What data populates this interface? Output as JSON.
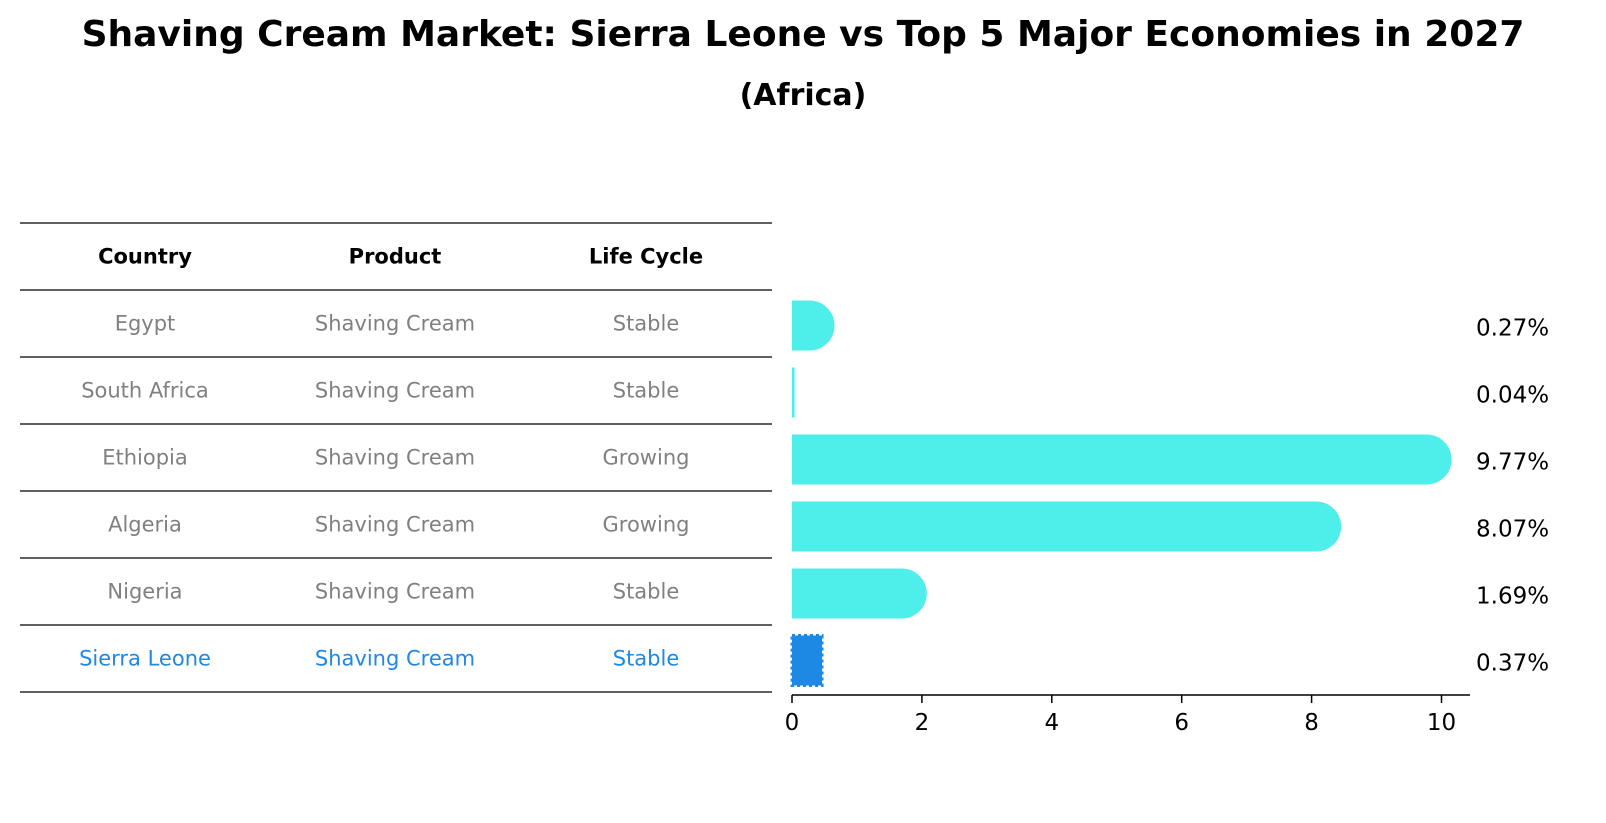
{
  "title": "Shaving Cream Market: Sierra Leone vs Top 5 Major Economies in 2027",
  "subtitle": "(Africa)",
  "table": {
    "headers": [
      "Country",
      "Product",
      "Life Cycle"
    ],
    "rows": [
      [
        "Egypt",
        "Shaving Cream",
        "Stable"
      ],
      [
        "South Africa",
        "Shaving Cream",
        "Stable"
      ],
      [
        "Ethiopia",
        "Shaving Cream",
        "Growing"
      ],
      [
        "Algeria",
        "Shaving Cream",
        "Growing"
      ],
      [
        "Nigeria",
        "Shaving Cream",
        "Stable"
      ],
      [
        "Sierra Leone",
        "Shaving Cream",
        "Stable"
      ]
    ],
    "highlight_row": 5
  },
  "colors": {
    "bar": "#4eeeea",
    "highlight": "#1e88e5",
    "text_muted": "#808080",
    "text_dark": "#000000"
  },
  "chart_data": {
    "type": "bar",
    "orientation": "horizontal",
    "categories": [
      "Egypt",
      "South Africa",
      "Ethiopia",
      "Algeria",
      "Nigeria",
      "Sierra Leone"
    ],
    "values": [
      0.27,
      0.04,
      9.77,
      8.07,
      1.69,
      0.37
    ],
    "data_labels": [
      "0.27%",
      "0.04%",
      "9.77%",
      "8.07%",
      "1.69%",
      "0.37%"
    ],
    "xlim": [
      0,
      10.2
    ],
    "xticks": [
      0,
      2,
      4,
      6,
      8,
      10
    ],
    "highlight_category": "Sierra Leone",
    "grid": false
  }
}
